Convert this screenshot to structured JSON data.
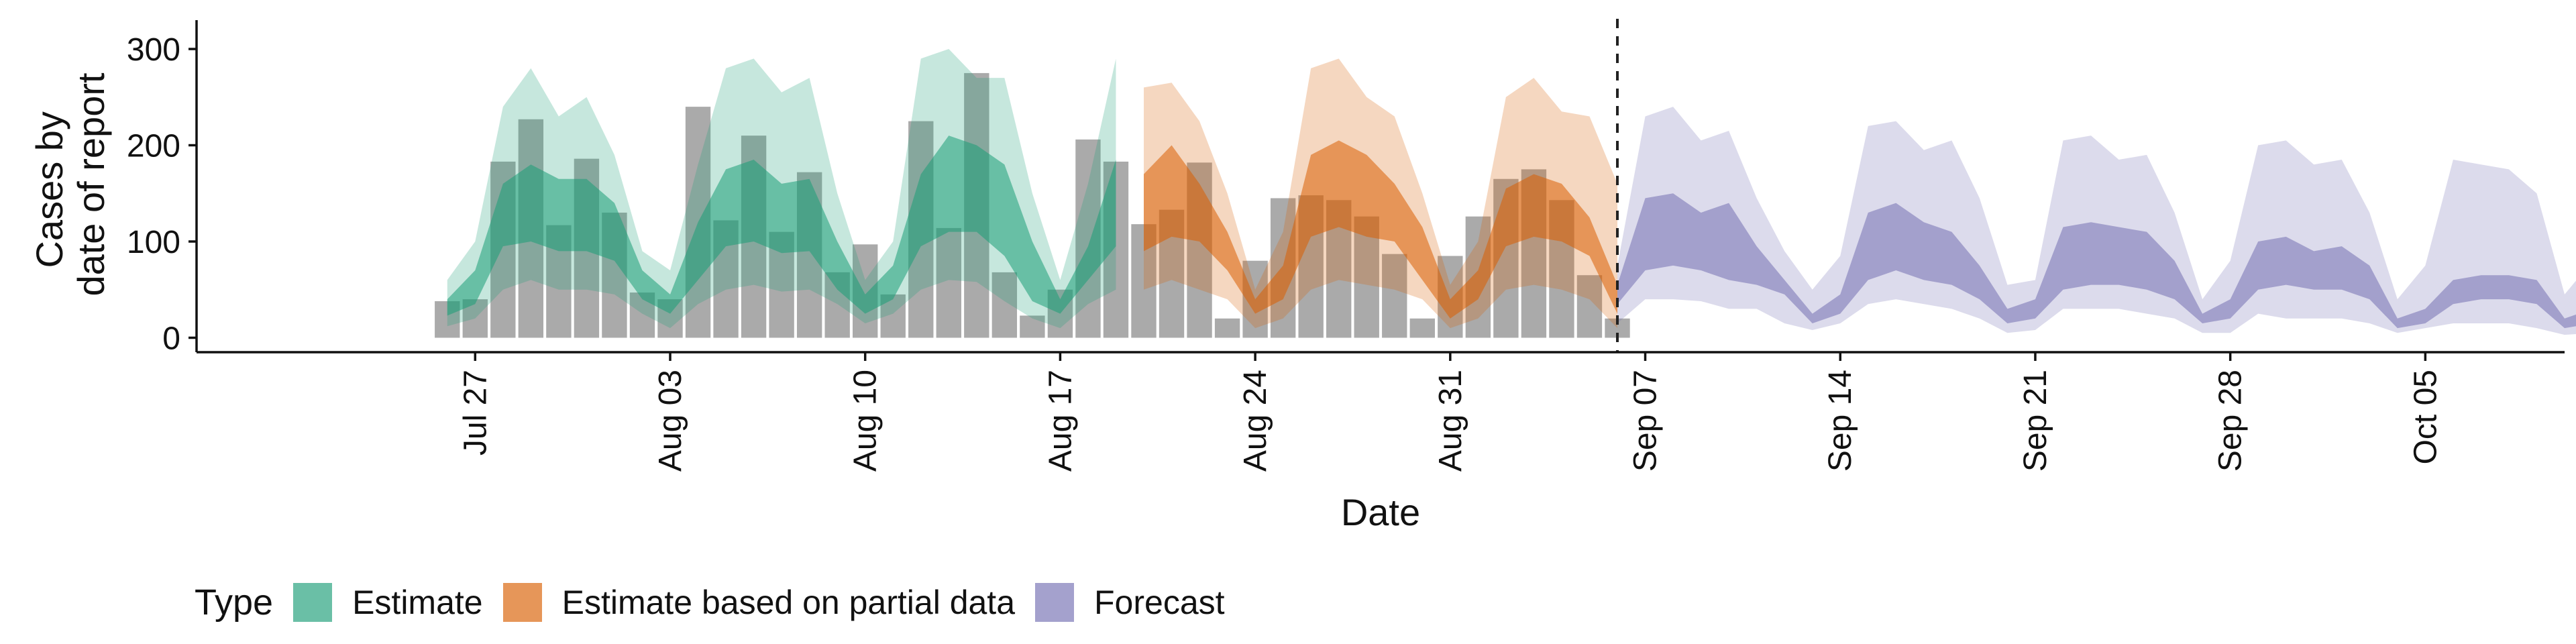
{
  "chart_data": {
    "type": "area",
    "xlabel": "Date",
    "ylabel_lines": [
      "Cases by",
      "date of report"
    ],
    "ylim": [
      -15,
      330
    ],
    "yticks": [
      0,
      100,
      200,
      300
    ],
    "xlim": [
      "2021-07-17",
      "2021-10-10"
    ],
    "xticks": [
      {
        "date": "2021-07-27",
        "label": "Jul 27"
      },
      {
        "date": "2021-08-03",
        "label": "Aug 03"
      },
      {
        "date": "2021-08-10",
        "label": "Aug 10"
      },
      {
        "date": "2021-08-17",
        "label": "Aug 17"
      },
      {
        "date": "2021-08-24",
        "label": "Aug 24"
      },
      {
        "date": "2021-08-31",
        "label": "Aug 31"
      },
      {
        "date": "2021-09-07",
        "label": "Sep 07"
      },
      {
        "date": "2021-09-14",
        "label": "Sep 14"
      },
      {
        "date": "2021-09-21",
        "label": "Sep 21"
      },
      {
        "date": "2021-09-28",
        "label": "Sep 28"
      },
      {
        "date": "2021-10-05",
        "label": "Oct 05"
      }
    ],
    "forecast_line_date": "2021-09-06",
    "bar_color": "#aaaaaa",
    "bars": {
      "start": "2021-07-26",
      "values": [
        38,
        40,
        183,
        227,
        117,
        186,
        130,
        47,
        40,
        240,
        122,
        210,
        110,
        172,
        68,
        97,
        45,
        225,
        114,
        275,
        68,
        23,
        50,
        206,
        183,
        118,
        133,
        182,
        20,
        80,
        145,
        148,
        143,
        126,
        87,
        20,
        85,
        126,
        165,
        175,
        143,
        65,
        20
      ]
    },
    "legend_title": "Type",
    "series": [
      {
        "name": "Estimate",
        "color": "#1b9e77",
        "start": "2021-07-26",
        "lower90": [
          12,
          20,
          50,
          60,
          50,
          50,
          45,
          25,
          10,
          35,
          50,
          55,
          48,
          50,
          35,
          15,
          25,
          50,
          60,
          58,
          38,
          20,
          10,
          35,
          50
        ],
        "lower50": [
          23,
          35,
          95,
          100,
          90,
          90,
          80,
          40,
          25,
          60,
          95,
          100,
          88,
          90,
          50,
          25,
          40,
          95,
          110,
          110,
          85,
          38,
          25,
          60,
          95
        ],
        "upper50": [
          40,
          70,
          160,
          180,
          165,
          165,
          140,
          70,
          45,
          120,
          175,
          185,
          160,
          165,
          100,
          45,
          75,
          170,
          210,
          200,
          180,
          100,
          40,
          95,
          185
        ],
        "upper90": [
          60,
          100,
          240,
          280,
          230,
          250,
          190,
          90,
          70,
          180,
          280,
          290,
          255,
          270,
          150,
          60,
          100,
          290,
          300,
          270,
          270,
          150,
          60,
          160,
          290
        ]
      },
      {
        "name": "Estimate based on partial data",
        "color": "#d95f02",
        "start": "2021-08-20",
        "lower90": [
          50,
          60,
          50,
          40,
          10,
          20,
          50,
          60,
          55,
          50,
          40,
          10,
          20,
          50,
          55,
          50,
          40,
          10
        ],
        "lower50": [
          90,
          105,
          100,
          70,
          25,
          40,
          105,
          115,
          105,
          100,
          60,
          20,
          40,
          95,
          105,
          100,
          85,
          25
        ],
        "upper50": [
          170,
          200,
          160,
          110,
          40,
          75,
          190,
          205,
          190,
          160,
          115,
          40,
          70,
          155,
          170,
          160,
          125,
          55
        ],
        "upper90": [
          260,
          265,
          225,
          150,
          50,
          110,
          280,
          290,
          250,
          230,
          150,
          55,
          100,
          250,
          270,
          235,
          230,
          160
        ]
      },
      {
        "name": "Forecast",
        "color": "#7570b3",
        "start": "2021-09-06",
        "lower90": [
          15,
          40,
          40,
          38,
          30,
          30,
          15,
          8,
          15,
          35,
          40,
          35,
          30,
          20,
          5,
          8,
          30,
          30,
          30,
          25,
          20,
          5,
          5,
          25,
          20,
          20,
          20,
          15,
          5,
          10,
          15,
          15,
          15,
          10,
          3,
          5,
          15
        ],
        "lower50": [
          35,
          70,
          75,
          70,
          60,
          55,
          45,
          15,
          25,
          60,
          70,
          60,
          55,
          40,
          15,
          20,
          50,
          55,
          55,
          50,
          40,
          15,
          20,
          50,
          55,
          50,
          50,
          40,
          10,
          15,
          35,
          40,
          40,
          35,
          10,
          15,
          35
        ],
        "upper50": [
          55,
          145,
          150,
          130,
          140,
          95,
          60,
          25,
          45,
          130,
          140,
          120,
          110,
          75,
          30,
          40,
          115,
          120,
          115,
          110,
          80,
          25,
          40,
          100,
          105,
          90,
          95,
          75,
          20,
          30,
          60,
          65,
          65,
          60,
          20,
          30,
          95
        ],
        "upper90": [
          75,
          230,
          240,
          205,
          215,
          145,
          90,
          50,
          85,
          220,
          225,
          195,
          205,
          145,
          55,
          60,
          205,
          210,
          185,
          190,
          130,
          40,
          80,
          200,
          205,
          180,
          185,
          130,
          40,
          75,
          185,
          180,
          175,
          150,
          45,
          80,
          180
        ]
      }
    ]
  }
}
